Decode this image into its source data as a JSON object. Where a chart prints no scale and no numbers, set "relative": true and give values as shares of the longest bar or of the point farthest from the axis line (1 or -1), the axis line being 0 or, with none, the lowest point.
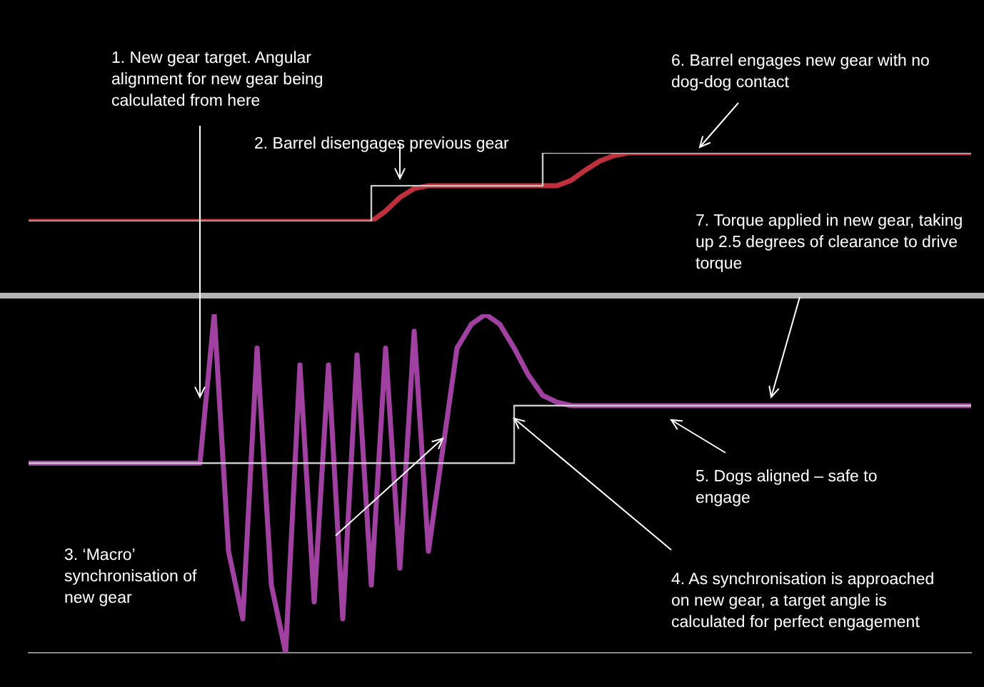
{
  "chart_data": [
    {
      "type": "line",
      "relative": true,
      "categories": [
        null,
        null,
        null,
        null,
        null,
        null,
        null,
        null,
        null,
        null,
        null,
        null,
        null,
        null,
        null,
        null,
        null,
        null,
        null,
        null,
        null,
        null,
        null,
        null,
        null,
        null,
        null,
        null,
        null,
        null,
        null,
        null,
        null,
        null,
        null,
        null,
        null,
        null,
        null,
        null,
        null,
        null,
        null,
        null,
        null,
        null,
        null,
        null,
        null,
        null,
        null,
        null,
        null,
        null,
        null,
        null,
        null,
        null,
        null,
        null,
        null,
        null,
        null,
        null,
        null,
        null,
        null
      ],
      "series": [
        {
          "type": "step",
          "color": "#c8c8c8",
          "values": [
            0,
            0,
            0,
            0,
            0,
            0,
            0,
            0,
            0,
            0,
            0,
            0,
            0,
            0,
            0,
            0,
            0,
            0,
            0,
            0,
            0,
            0,
            0,
            0,
            0.52,
            0.52,
            0.52,
            0.52,
            0.52,
            0.52,
            0.52,
            0.52,
            0.52,
            0.52,
            0.52,
            0.52,
            1,
            1,
            1,
            1,
            1,
            1,
            1,
            1,
            1,
            1,
            1,
            1,
            1,
            1,
            1,
            1,
            1,
            1,
            1,
            1,
            1,
            1,
            1,
            1,
            1,
            1,
            1,
            1,
            1,
            1,
            1
          ]
        },
        {
          "type": "line",
          "color": "#c0303c",
          "values": [
            0,
            0,
            0,
            0,
            0,
            0,
            0,
            0,
            0,
            0,
            0,
            0,
            0,
            0,
            0,
            0,
            0,
            0,
            0,
            0,
            0,
            0,
            0,
            0,
            0,
            0.15,
            0.35,
            0.48,
            0.52,
            0.52,
            0.52,
            0.52,
            0.52,
            0.52,
            0.52,
            0.52,
            0.52,
            0.52,
            0.6,
            0.75,
            0.88,
            0.96,
            1,
            1,
            1,
            1,
            1,
            1,
            1,
            1,
            1,
            1,
            1,
            1,
            1,
            1,
            1,
            1,
            1,
            1,
            1,
            1,
            1,
            1,
            1,
            1,
            1
          ]
        }
      ],
      "annotations": [
        "1. New gear target. Angular alignment for new gear being calculated from here",
        "2. Barrel disengages previous gear",
        "6. Barrel engages new gear with no dog-dog contact",
        "7. Torque applied in new gear, taking up 2.5 degrees of clearance to drive torque"
      ]
    },
    {
      "type": "line",
      "relative": true,
      "categories": [
        null,
        null,
        null,
        null,
        null,
        null,
        null,
        null,
        null,
        null,
        null,
        null,
        null,
        null,
        null,
        null,
        null,
        null,
        null,
        null,
        null,
        null,
        null,
        null,
        null,
        null,
        null,
        null,
        null,
        null,
        null,
        null,
        null,
        null,
        null,
        null,
        null,
        null,
        null,
        null,
        null,
        null,
        null,
        null,
        null,
        null,
        null,
        null,
        null,
        null,
        null,
        null,
        null,
        null,
        null,
        null,
        null,
        null,
        null,
        null,
        null,
        null,
        null,
        null,
        null,
        null,
        null
      ],
      "series": [
        {
          "type": "step",
          "color": "#c8c8c8",
          "values": [
            0.56,
            0.56,
            0.56,
            0.56,
            0.56,
            0.56,
            0.56,
            0.56,
            0.56,
            0.56,
            0.56,
            0.56,
            0.56,
            0.56,
            0.56,
            0.56,
            0.56,
            0.56,
            0.56,
            0.56,
            0.56,
            0.56,
            0.56,
            0.56,
            0.56,
            0.56,
            0.56,
            0.56,
            0.56,
            0.56,
            0.56,
            0.56,
            0.56,
            0.56,
            0.73,
            0.73,
            0.73,
            0.73,
            0.73,
            0.73,
            0.73,
            0.73,
            0.73,
            0.73,
            0.73,
            0.73,
            0.73,
            0.73,
            0.73,
            0.73,
            0.73,
            0.73,
            0.73,
            0.73,
            0.73,
            0.73,
            0.73,
            0.73,
            0.73,
            0.73,
            0.73,
            0.73,
            0.73,
            0.73,
            0.73,
            0.73,
            0.73
          ]
        },
        {
          "type": "line",
          "color": "#a040a0",
          "values": [
            0.56,
            0.56,
            0.56,
            0.56,
            0.56,
            0.56,
            0.56,
            0.56,
            0.56,
            0.56,
            0.56,
            0.56,
            0.56,
            1,
            0.3,
            0.1,
            0.9,
            0.2,
            0,
            0.85,
            0.15,
            0.85,
            0.1,
            0.88,
            0.2,
            0.9,
            0.25,
            0.95,
            0.3,
            0.6,
            0.9,
            0.97,
            1,
            0.97,
            0.9,
            0.82,
            0.76,
            0.74,
            0.73,
            0.73,
            0.73,
            0.73,
            0.73,
            0.73,
            0.73,
            0.73,
            0.73,
            0.73,
            0.73,
            0.73,
            0.73,
            0.73,
            0.73,
            0.73,
            0.73,
            0.73,
            0.73,
            0.73,
            0.73,
            0.73,
            0.73,
            0.73,
            0.73,
            0.73,
            0.73,
            0.73,
            0.73
          ]
        }
      ],
      "annotations": [
        "3. ‘Macro’ synchronisation of new gear",
        "4. As synchronisation is approached on new gear, a target angle is calculated for perfect engagement",
        "5. Dogs aligned – safe to engage"
      ]
    }
  ]
}
